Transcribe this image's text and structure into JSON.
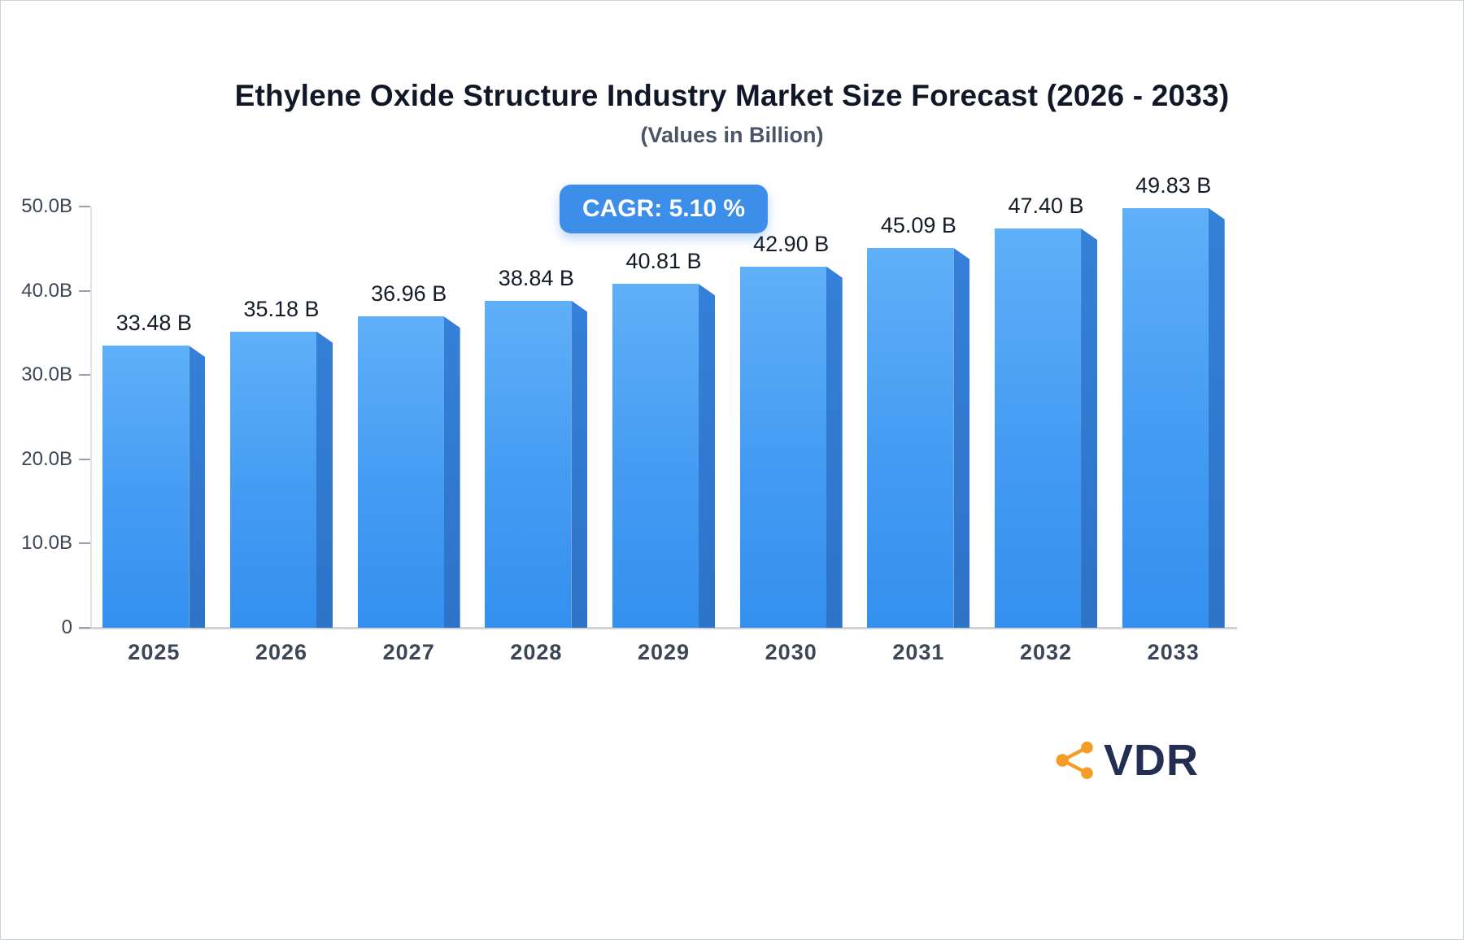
{
  "header": {
    "title": "Ethylene Oxide Structure Industry Market Size Forecast (2026 - 2033)",
    "subtitle": "(Values in Billion)"
  },
  "cagr_badge": {
    "label": "CAGR: 5.10 %"
  },
  "chart_data": {
    "type": "bar",
    "title": "Ethylene Oxide Structure Industry Market Size Forecast (2026 - 2033)",
    "subtitle": "(Values in Billion)",
    "categories": [
      "2025",
      "2026",
      "2027",
      "2028",
      "2029",
      "2030",
      "2031",
      "2032",
      "2033"
    ],
    "values": [
      33.48,
      35.18,
      36.96,
      38.84,
      40.81,
      42.9,
      45.09,
      47.4,
      49.83
    ],
    "value_labels": [
      "33.48 B",
      "35.18 B",
      "36.96 B",
      "38.84 B",
      "40.81 B",
      "42.90 B",
      "45.09 B",
      "47.40 B",
      "49.83 B"
    ],
    "unit": "Billion",
    "cagr": "5.10 %",
    "xlabel": "",
    "ylabel": "",
    "ylim": [
      0,
      50
    ],
    "yticks": [
      {
        "value": 0,
        "label": "0"
      },
      {
        "value": 10,
        "label": "10.0B"
      },
      {
        "value": 20,
        "label": "20.0B"
      },
      {
        "value": 30,
        "label": "30.0B"
      },
      {
        "value": 40,
        "label": "40.0B"
      },
      {
        "value": 50,
        "label": "50.0B"
      }
    ],
    "grid": "off",
    "legend": "none",
    "bar_color_top": "#5fb0f8",
    "bar_color_bottom": "#3490ef",
    "bar_side_color": "#2d73c8",
    "badge_color": "#3d8ee9"
  },
  "logo": {
    "text": "VDR",
    "icon": "share-molecule-icon",
    "icon_color": "#f59c27",
    "text_color": "#232e52"
  }
}
